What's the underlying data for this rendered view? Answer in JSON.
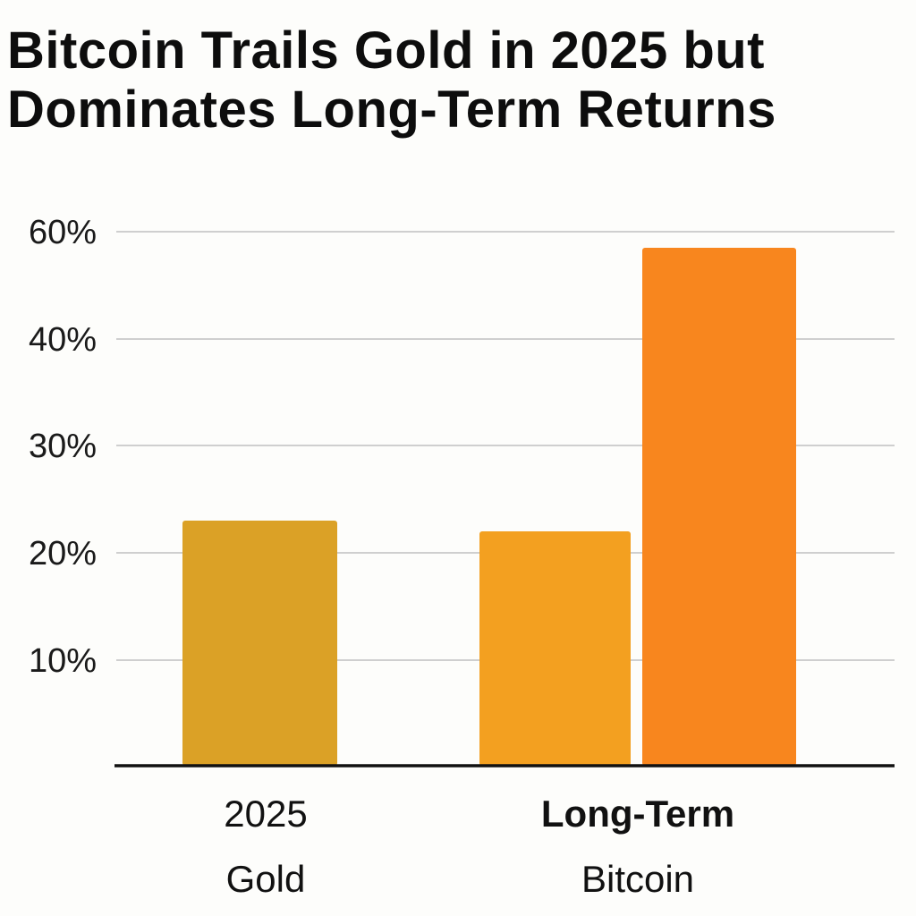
{
  "title": {
    "line1": "Bitcoin Trails Gold in 2025 but",
    "line2": "Dominates Long-Term Returns"
  },
  "chart_data": {
    "type": "bar",
    "title": "Bitcoin Trails Gold in 2025 but Dominates Long-Term Returns",
    "y_tick_labels": [
      {
        "value": 60,
        "label": "60%"
      },
      {
        "value": 40,
        "label": "40%"
      },
      {
        "value": 30,
        "label": "30%"
      },
      {
        "value": 20,
        "label": "20%"
      },
      {
        "value": 10,
        "label": "10%"
      }
    ],
    "grid": true,
    "bars": [
      {
        "category": "2025",
        "series": "Gold",
        "value": 23,
        "color": "#DBA126"
      },
      {
        "category": "Long-Term",
        "series": "Bitcoin",
        "value": 22,
        "color": "#F3A020"
      },
      {
        "category": "Long-Term",
        "series": "Bitcoin",
        "value": 57,
        "color": "#F8861E"
      }
    ],
    "category_labels": [
      {
        "category": "2025",
        "label": "2025",
        "bold": false
      },
      {
        "category": "Long-Term",
        "label": "Long-Term",
        "bold": true
      }
    ],
    "series_labels": [
      {
        "category": "2025",
        "label": "Gold"
      },
      {
        "category": "Long-Term",
        "label": "Bitcoin"
      }
    ],
    "colors": {
      "gold_bar": "#DBA126",
      "bitcoin_bar_light": "#F3A020",
      "bitcoin_bar_dark": "#F8861E",
      "gridline": "#cfcfcf",
      "axis": "#111111"
    }
  }
}
